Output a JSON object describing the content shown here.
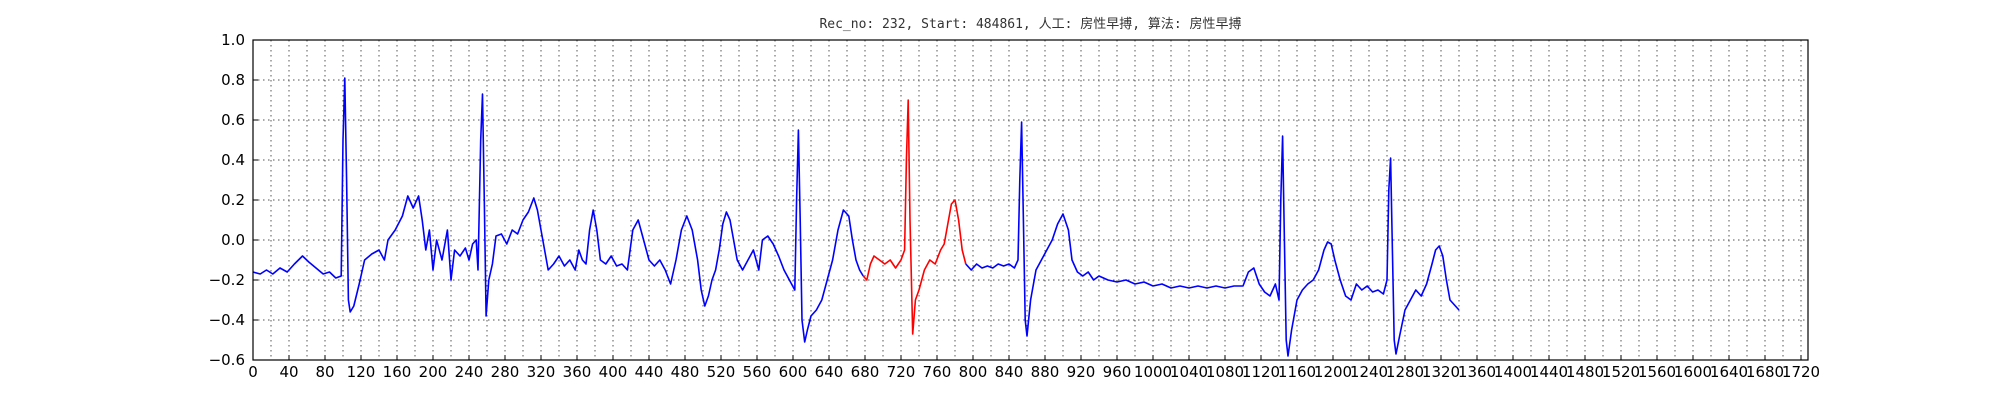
{
  "chart_data": {
    "type": "line",
    "title": "Rec_no: 232, Start: 484861, 人工: 房性早搏, 算法: 房性早搏",
    "xlabel": "",
    "ylabel": "",
    "xlim": [
      0,
      1720
    ],
    "ylim": [
      -0.6,
      1.0
    ],
    "grid": true,
    "x_ticks": [
      0,
      40,
      80,
      120,
      160,
      200,
      240,
      280,
      320,
      360,
      400,
      440,
      480,
      520,
      560,
      600,
      640,
      680,
      720,
      760,
      800,
      840,
      880,
      920,
      960,
      1000,
      1040,
      1080,
      1120,
      1160,
      1200,
      1240,
      1280,
      1320,
      1360,
      1400,
      1440,
      1480,
      1520,
      1560,
      1600,
      1640,
      1680,
      1720
    ],
    "x_tick_labels": [
      "0",
      "40",
      "80",
      "120",
      "160",
      "200",
      "240",
      "280",
      "320",
      "360",
      "400",
      "440",
      "480",
      "520",
      "560",
      "600",
      "640",
      "680",
      "720",
      "760",
      "800",
      "840",
      "880",
      "920",
      "960",
      "1000",
      "1040",
      "1080",
      "1120",
      "1160",
      "1200",
      "1240",
      "1280",
      "1320",
      "1360",
      "1400",
      "1440",
      "1480",
      "1520",
      "1560",
      "1600",
      "1640",
      "1680",
      "1720"
    ],
    "y_ticks": [
      -0.6,
      -0.4,
      -0.2,
      0.0,
      0.2,
      0.4,
      0.6,
      0.8,
      1.0
    ],
    "y_tick_labels": [
      "−0.6",
      "−0.4",
      "−0.2",
      "0.0",
      "0.2",
      "0.4",
      "0.6",
      "0.8",
      "1.0"
    ],
    "series": [
      {
        "color": "#0000ff",
        "points": [
          [
            0,
            -0.16
          ],
          [
            8,
            -0.17
          ],
          [
            15,
            -0.15
          ],
          [
            22,
            -0.17
          ],
          [
            30,
            -0.14
          ],
          [
            38,
            -0.16
          ],
          [
            46,
            -0.12
          ],
          [
            55,
            -0.08
          ],
          [
            62,
            -0.11
          ],
          [
            70,
            -0.14
          ],
          [
            78,
            -0.17
          ],
          [
            85,
            -0.16
          ],
          [
            92,
            -0.19
          ],
          [
            98,
            -0.18
          ],
          [
            100,
            0.5
          ],
          [
            102,
            0.81
          ],
          [
            104,
            0.3
          ],
          [
            106,
            -0.3
          ],
          [
            108,
            -0.36
          ],
          [
            112,
            -0.33
          ],
          [
            118,
            -0.22
          ],
          [
            124,
            -0.1
          ],
          [
            132,
            -0.07
          ],
          [
            140,
            -0.05
          ],
          [
            146,
            -0.1
          ],
          [
            150,
            0.0
          ],
          [
            158,
            0.05
          ],
          [
            166,
            0.12
          ],
          [
            172,
            0.22
          ],
          [
            178,
            0.16
          ],
          [
            184,
            0.22
          ],
          [
            188,
            0.1
          ],
          [
            192,
            -0.05
          ],
          [
            196,
            0.05
          ],
          [
            200,
            -0.15
          ],
          [
            204,
            0.0
          ],
          [
            210,
            -0.1
          ],
          [
            216,
            0.05
          ],
          [
            220,
            -0.2
          ],
          [
            224,
            -0.05
          ],
          [
            230,
            -0.08
          ],
          [
            236,
            -0.04
          ],
          [
            240,
            -0.1
          ],
          [
            244,
            -0.02
          ],
          [
            248,
            0.0
          ],
          [
            250,
            -0.15
          ],
          [
            253,
            0.5
          ],
          [
            255,
            0.73
          ],
          [
            257,
            0.2
          ],
          [
            259,
            -0.38
          ],
          [
            262,
            -0.2
          ],
          [
            266,
            -0.12
          ],
          [
            270,
            0.02
          ],
          [
            276,
            0.03
          ],
          [
            282,
            -0.02
          ],
          [
            288,
            0.05
          ],
          [
            294,
            0.03
          ],
          [
            300,
            0.1
          ],
          [
            306,
            0.14
          ],
          [
            312,
            0.21
          ],
          [
            316,
            0.15
          ],
          [
            320,
            0.05
          ],
          [
            324,
            -0.05
          ],
          [
            328,
            -0.15
          ],
          [
            334,
            -0.12
          ],
          [
            340,
            -0.08
          ],
          [
            346,
            -0.13
          ],
          [
            352,
            -0.1
          ],
          [
            358,
            -0.15
          ],
          [
            362,
            -0.05
          ],
          [
            366,
            -0.1
          ],
          [
            370,
            -0.12
          ],
          [
            374,
            0.05
          ],
          [
            378,
            0.15
          ],
          [
            382,
            0.05
          ],
          [
            386,
            -0.1
          ],
          [
            392,
            -0.12
          ],
          [
            398,
            -0.08
          ],
          [
            404,
            -0.13
          ],
          [
            410,
            -0.12
          ],
          [
            416,
            -0.15
          ],
          [
            422,
            0.05
          ],
          [
            428,
            0.1
          ],
          [
            434,
            0.0
          ],
          [
            440,
            -0.1
          ],
          [
            446,
            -0.13
          ],
          [
            452,
            -0.1
          ],
          [
            458,
            -0.15
          ],
          [
            464,
            -0.22
          ],
          [
            470,
            -0.1
          ],
          [
            476,
            0.05
          ],
          [
            482,
            0.12
          ],
          [
            488,
            0.05
          ],
          [
            494,
            -0.1
          ],
          [
            498,
            -0.25
          ],
          [
            502,
            -0.33
          ],
          [
            506,
            -0.28
          ],
          [
            510,
            -0.2
          ],
          [
            514,
            -0.15
          ],
          [
            518,
            -0.05
          ],
          [
            522,
            0.08
          ],
          [
            526,
            0.14
          ],
          [
            530,
            0.1
          ],
          [
            534,
            0.0
          ],
          [
            538,
            -0.1
          ],
          [
            544,
            -0.15
          ],
          [
            550,
            -0.1
          ],
          [
            556,
            -0.05
          ],
          [
            562,
            -0.15
          ],
          [
            566,
            0.0
          ],
          [
            572,
            0.02
          ],
          [
            578,
            -0.02
          ],
          [
            584,
            -0.08
          ],
          [
            590,
            -0.15
          ],
          [
            596,
            -0.2
          ],
          [
            602,
            -0.25
          ],
          [
            604,
            0.2
          ],
          [
            606,
            0.55
          ],
          [
            608,
            0.1
          ],
          [
            610,
            -0.4
          ],
          [
            613,
            -0.51
          ],
          [
            616,
            -0.45
          ],
          [
            620,
            -0.38
          ],
          [
            626,
            -0.35
          ],
          [
            632,
            -0.3
          ],
          [
            638,
            -0.2
          ],
          [
            644,
            -0.1
          ],
          [
            650,
            0.05
          ],
          [
            656,
            0.15
          ],
          [
            662,
            0.12
          ],
          [
            666,
            0.0
          ],
          [
            670,
            -0.1
          ],
          [
            674,
            -0.15
          ],
          [
            678,
            -0.18
          ]
        ]
      },
      {
        "color": "#ff0000",
        "points": [
          [
            678,
            -0.18
          ],
          [
            682,
            -0.2
          ],
          [
            686,
            -0.12
          ],
          [
            690,
            -0.08
          ],
          [
            696,
            -0.1
          ],
          [
            702,
            -0.12
          ],
          [
            708,
            -0.1
          ],
          [
            714,
            -0.14
          ],
          [
            720,
            -0.1
          ],
          [
            724,
            -0.05
          ],
          [
            726,
            0.4
          ],
          [
            728,
            0.7
          ],
          [
            730,
            0.1
          ],
          [
            733,
            -0.47
          ],
          [
            736,
            -0.3
          ],
          [
            740,
            -0.25
          ],
          [
            746,
            -0.15
          ],
          [
            752,
            -0.1
          ],
          [
            758,
            -0.12
          ],
          [
            764,
            -0.05
          ],
          [
            768,
            -0.02
          ],
          [
            772,
            0.08
          ],
          [
            776,
            0.18
          ],
          [
            780,
            0.2
          ],
          [
            784,
            0.1
          ],
          [
            788,
            -0.05
          ],
          [
            792,
            -0.12
          ]
        ]
      },
      {
        "color": "#0000ff",
        "points": [
          [
            792,
            -0.12
          ],
          [
            798,
            -0.15
          ],
          [
            804,
            -0.12
          ],
          [
            810,
            -0.14
          ],
          [
            816,
            -0.13
          ],
          [
            822,
            -0.14
          ],
          [
            828,
            -0.12
          ],
          [
            834,
            -0.13
          ],
          [
            840,
            -0.12
          ],
          [
            846,
            -0.14
          ],
          [
            850,
            -0.1
          ],
          [
            852,
            0.3
          ],
          [
            854,
            0.59
          ],
          [
            856,
            0.1
          ],
          [
            858,
            -0.4
          ],
          [
            860,
            -0.48
          ],
          [
            864,
            -0.3
          ],
          [
            870,
            -0.15
          ],
          [
            876,
            -0.1
          ],
          [
            882,
            -0.05
          ],
          [
            888,
            0.0
          ],
          [
            894,
            0.08
          ],
          [
            900,
            0.13
          ],
          [
            906,
            0.05
          ],
          [
            910,
            -0.1
          ],
          [
            916,
            -0.16
          ],
          [
            922,
            -0.18
          ],
          [
            928,
            -0.16
          ],
          [
            934,
            -0.2
          ],
          [
            940,
            -0.18
          ],
          [
            950,
            -0.2
          ],
          [
            960,
            -0.21
          ],
          [
            970,
            -0.2
          ],
          [
            980,
            -0.22
          ],
          [
            990,
            -0.21
          ],
          [
            1000,
            -0.23
          ],
          [
            1010,
            -0.22
          ],
          [
            1020,
            -0.24
          ],
          [
            1030,
            -0.23
          ],
          [
            1040,
            -0.24
          ],
          [
            1050,
            -0.23
          ],
          [
            1060,
            -0.24
          ],
          [
            1070,
            -0.23
          ],
          [
            1080,
            -0.24
          ],
          [
            1090,
            -0.23
          ],
          [
            1100,
            -0.23
          ],
          [
            1106,
            -0.16
          ],
          [
            1112,
            -0.14
          ],
          [
            1118,
            -0.22
          ],
          [
            1124,
            -0.26
          ],
          [
            1130,
            -0.28
          ],
          [
            1136,
            -0.22
          ],
          [
            1140,
            -0.3
          ],
          [
            1142,
            0.2
          ],
          [
            1144,
            0.52
          ],
          [
            1146,
            0.0
          ],
          [
            1148,
            -0.5
          ],
          [
            1150,
            -0.58
          ],
          [
            1154,
            -0.45
          ],
          [
            1160,
            -0.3
          ],
          [
            1166,
            -0.25
          ],
          [
            1172,
            -0.22
          ],
          [
            1178,
            -0.2
          ],
          [
            1184,
            -0.15
          ],
          [
            1190,
            -0.05
          ],
          [
            1194,
            -0.01
          ],
          [
            1198,
            -0.02
          ],
          [
            1202,
            -0.1
          ],
          [
            1208,
            -0.2
          ],
          [
            1214,
            -0.28
          ],
          [
            1220,
            -0.3
          ],
          [
            1226,
            -0.22
          ],
          [
            1232,
            -0.25
          ],
          [
            1238,
            -0.23
          ],
          [
            1244,
            -0.26
          ],
          [
            1250,
            -0.25
          ],
          [
            1256,
            -0.27
          ],
          [
            1260,
            -0.2
          ],
          [
            1262,
            0.25
          ],
          [
            1264,
            0.41
          ],
          [
            1266,
            -0.05
          ],
          [
            1268,
            -0.5
          ],
          [
            1270,
            -0.57
          ],
          [
            1274,
            -0.48
          ],
          [
            1280,
            -0.35
          ],
          [
            1286,
            -0.3
          ],
          [
            1292,
            -0.25
          ],
          [
            1298,
            -0.28
          ],
          [
            1304,
            -0.22
          ],
          [
            1310,
            -0.12
          ],
          [
            1314,
            -0.05
          ],
          [
            1318,
            -0.03
          ],
          [
            1322,
            -0.08
          ],
          [
            1326,
            -0.2
          ],
          [
            1330,
            -0.3
          ],
          [
            1336,
            -0.33
          ],
          [
            1340,
            -0.35
          ]
        ]
      }
    ]
  }
}
